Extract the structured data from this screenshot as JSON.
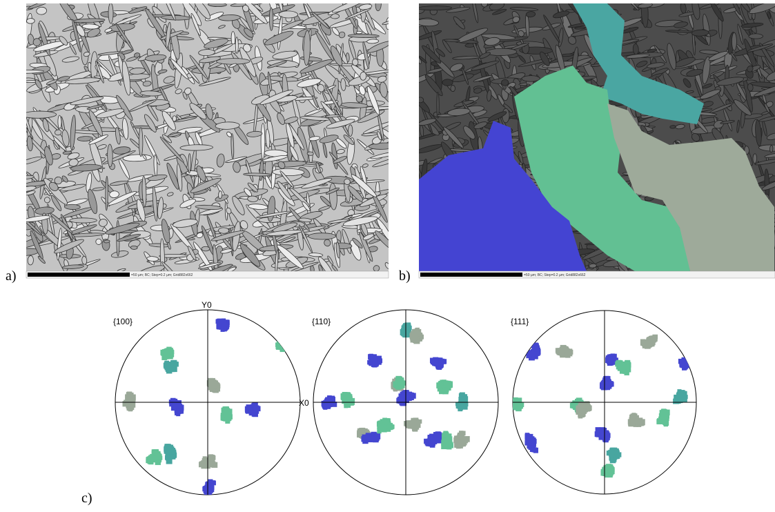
{
  "panels": [
    {
      "label": "a)",
      "scale_text": "=50 µm; BC; Step=0.2 µm; Grid882x662"
    },
    {
      "label": "b)",
      "scale_text": "=50 µm; BC; Step=0.2 µm; Grid882x662"
    },
    {
      "label": "c)"
    }
  ],
  "pole_figures": [
    {
      "title": "{100}",
      "y_axis": "Y0",
      "x_axis": "X0"
    },
    {
      "title": "{110}"
    },
    {
      "title": "{111}"
    }
  ]
}
